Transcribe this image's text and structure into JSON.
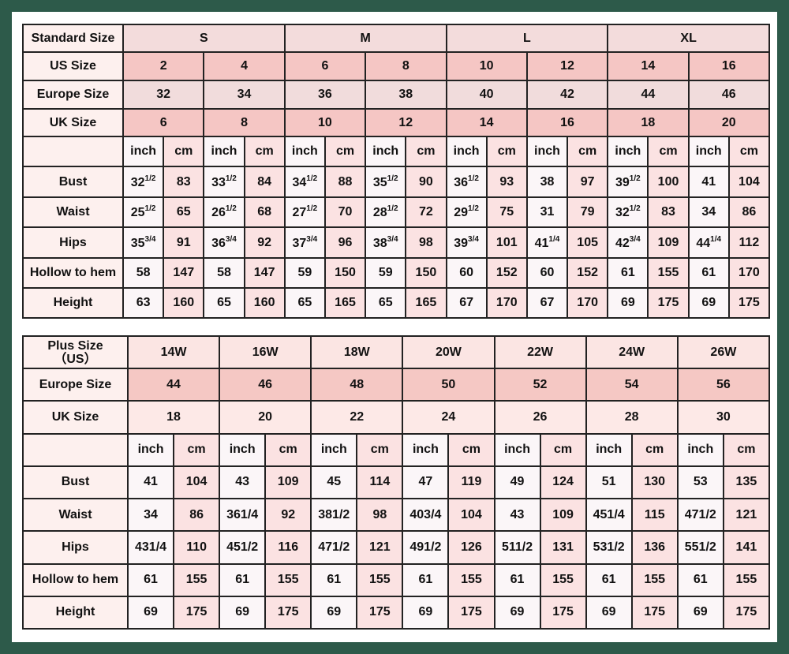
{
  "standard_table": {
    "rows": [
      {
        "label": "Standard Size",
        "span": 4,
        "values": [
          "S",
          "M",
          "L",
          "XL"
        ],
        "cls": "r-std"
      },
      {
        "label": "US Size",
        "span": 2,
        "values": [
          "2",
          "4",
          "6",
          "8",
          "10",
          "12",
          "14",
          "16"
        ],
        "cls": "r-us"
      },
      {
        "label": "Europe Size",
        "span": 2,
        "values": [
          "32",
          "34",
          "36",
          "38",
          "40",
          "42",
          "44",
          "46"
        ],
        "cls": "r-eu"
      },
      {
        "label": "UK Size",
        "span": 2,
        "values": [
          "6",
          "8",
          "10",
          "12",
          "14",
          "16",
          "18",
          "20"
        ],
        "cls": "r-uk"
      }
    ],
    "units_label": "",
    "units": [
      "inch",
      "cm"
    ],
    "measures": [
      {
        "label": "Bust",
        "values": [
          [
            "32",
            "1/2"
          ],
          [
            "83"
          ],
          [
            "33",
            "1/2"
          ],
          [
            "84"
          ],
          [
            "34",
            "1/2"
          ],
          [
            "88"
          ],
          [
            "35",
            "1/2"
          ],
          [
            "90"
          ],
          [
            "36",
            "1/2"
          ],
          [
            "93"
          ],
          [
            "38"
          ],
          [
            "97"
          ],
          [
            "39",
            "1/2"
          ],
          [
            "100"
          ],
          [
            "41"
          ],
          [
            "104"
          ]
        ]
      },
      {
        "label": "Waist",
        "values": [
          [
            "25",
            "1/2"
          ],
          [
            "65"
          ],
          [
            "26",
            "1/2"
          ],
          [
            "68"
          ],
          [
            "27",
            "1/2"
          ],
          [
            "70"
          ],
          [
            "28",
            "1/2"
          ],
          [
            "72"
          ],
          [
            "29",
            "1/2"
          ],
          [
            "75"
          ],
          [
            "31"
          ],
          [
            "79"
          ],
          [
            "32",
            "1/2"
          ],
          [
            "83"
          ],
          [
            "34"
          ],
          [
            "86"
          ]
        ]
      },
      {
        "label": "Hips",
        "values": [
          [
            "35",
            "3/4"
          ],
          [
            "91"
          ],
          [
            "36",
            "3/4"
          ],
          [
            "92"
          ],
          [
            "37",
            "3/4"
          ],
          [
            "96"
          ],
          [
            "38",
            "3/4"
          ],
          [
            "98"
          ],
          [
            "39",
            "3/4"
          ],
          [
            "101"
          ],
          [
            "41",
            "1/4"
          ],
          [
            "105"
          ],
          [
            "42",
            "3/4"
          ],
          [
            "109"
          ],
          [
            "44",
            "1/4"
          ],
          [
            "112"
          ]
        ]
      },
      {
        "label": "Hollow to hem",
        "values": [
          [
            "58"
          ],
          [
            "147"
          ],
          [
            "58"
          ],
          [
            "147"
          ],
          [
            "59"
          ],
          [
            "150"
          ],
          [
            "59"
          ],
          [
            "150"
          ],
          [
            "60"
          ],
          [
            "152"
          ],
          [
            "60"
          ],
          [
            "152"
          ],
          [
            "61"
          ],
          [
            "155"
          ],
          [
            "61"
          ],
          [
            "170"
          ]
        ]
      },
      {
        "label": "Height",
        "values": [
          [
            "63"
          ],
          [
            "160"
          ],
          [
            "65"
          ],
          [
            "160"
          ],
          [
            "65"
          ],
          [
            "165"
          ],
          [
            "65"
          ],
          [
            "165"
          ],
          [
            "67"
          ],
          [
            "170"
          ],
          [
            "67"
          ],
          [
            "170"
          ],
          [
            "69"
          ],
          [
            "175"
          ],
          [
            "69"
          ],
          [
            "175"
          ]
        ]
      }
    ]
  },
  "plus_table": {
    "rows": [
      {
        "label": "Plus Size\n（US）",
        "values": [
          "14W",
          "16W",
          "18W",
          "20W",
          "22W",
          "24W",
          "26W"
        ],
        "cls": "p-us"
      },
      {
        "label": "Europe Size",
        "values": [
          "44",
          "46",
          "48",
          "50",
          "52",
          "54",
          "56"
        ],
        "cls": "p-eu"
      },
      {
        "label": "UK Size",
        "values": [
          "18",
          "20",
          "22",
          "24",
          "26",
          "28",
          "30"
        ],
        "cls": "p-uk"
      }
    ],
    "units": [
      "inch",
      "cm"
    ],
    "measures": [
      {
        "label": "Bust",
        "values": [
          "41",
          "104",
          "43",
          "109",
          "45",
          "114",
          "47",
          "119",
          "49",
          "124",
          "51",
          "130",
          "53",
          "135"
        ]
      },
      {
        "label": "Waist",
        "values": [
          "34",
          "86",
          "361/4",
          "92",
          "381/2",
          "98",
          "403/4",
          "104",
          "43",
          "109",
          "451/4",
          "115",
          "471/2",
          "121"
        ]
      },
      {
        "label": "Hips",
        "values": [
          "431/4",
          "110",
          "451/2",
          "116",
          "471/2",
          "121",
          "491/2",
          "126",
          "511/2",
          "131",
          "531/2",
          "136",
          "551/2",
          "141"
        ]
      },
      {
        "label": "Hollow to hem",
        "values": [
          "61",
          "155",
          "61",
          "155",
          "61",
          "155",
          "61",
          "155",
          "61",
          "155",
          "61",
          "155",
          "61",
          "155"
        ]
      },
      {
        "label": "Height",
        "values": [
          "69",
          "175",
          "69",
          "175",
          "69",
          "175",
          "69",
          "175",
          "69",
          "175",
          "69",
          "175",
          "69",
          "175"
        ]
      }
    ]
  },
  "colors": {
    "frame": "#2d5a4a",
    "pink": "#f5c6c4",
    "light_pink": "#f3dcdc"
  }
}
